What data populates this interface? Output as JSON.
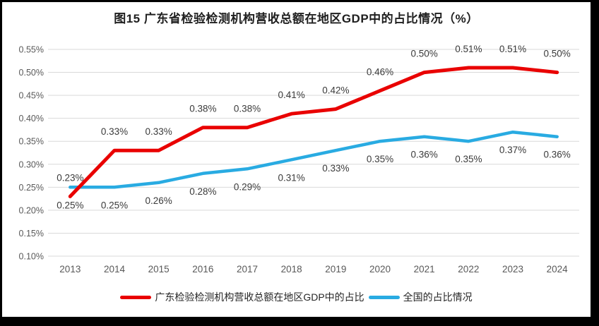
{
  "title": "图15  广东省检验检测机构营收总额在地区GDP中的占比情况（%）",
  "legend": [
    {
      "label": "广东检验检测机构营收总额在地区GDP中的占比",
      "color": "#e90000"
    },
    {
      "label": "全国的占比情况",
      "color": "#29abe2"
    }
  ],
  "colors": {
    "grid": "#d9d9d9",
    "tick_text": "#595959",
    "data_label_text": "#3a3a3a",
    "title_text": "#1f1f1f",
    "frame_border": "#000000",
    "background": "#ffffff"
  },
  "chart_data": {
    "type": "line",
    "title": "图15  广东省检验检测机构营收总额在地区GDP中的占比情况（%）",
    "categories": [
      "2013",
      "2014",
      "2015",
      "2016",
      "2017",
      "2018",
      "2019",
      "2020",
      "2021",
      "2022",
      "2023",
      "2024"
    ],
    "series": [
      {
        "name": "广东检验检测机构营收总额在地区GDP中的占比",
        "color": "#e90000",
        "stroke_width": 5,
        "label_position": "above",
        "values": [
          0.23,
          0.33,
          0.33,
          0.38,
          0.38,
          0.41,
          0.42,
          0.46,
          0.5,
          0.51,
          0.51,
          0.5
        ],
        "labels": [
          "0.23%",
          "0.33%",
          "0.33%",
          "0.38%",
          "0.38%",
          "0.41%",
          "0.42%",
          "0.46%",
          "0.50%",
          "0.51%",
          "0.51%",
          "0.50%"
        ]
      },
      {
        "name": "全国的占比情况",
        "color": "#29abe2",
        "stroke_width": 4.5,
        "label_position": "below",
        "values": [
          0.25,
          0.25,
          0.26,
          0.28,
          0.29,
          0.31,
          0.33,
          0.35,
          0.36,
          0.35,
          0.37,
          0.36
        ],
        "labels": [
          "0.25%",
          "0.25%",
          "0.26%",
          "0.28%",
          "0.29%",
          "0.31%",
          "0.33%",
          "0.35%",
          "0.36%",
          "0.35%",
          "0.37%",
          "0.36%"
        ]
      }
    ],
    "xlabel": "",
    "ylabel": "",
    "ylim": [
      0.1,
      0.55
    ],
    "y_ticks": [
      {
        "value": 0.1,
        "label": "0.10%"
      },
      {
        "value": 0.15,
        "label": "0.15%"
      },
      {
        "value": 0.2,
        "label": "0.20%"
      },
      {
        "value": 0.25,
        "label": "0.25%"
      },
      {
        "value": 0.3,
        "label": "0.30%"
      },
      {
        "value": 0.35,
        "label": "0.35%"
      },
      {
        "value": 0.4,
        "label": "0.40%"
      },
      {
        "value": 0.45,
        "label": "0.45%"
      },
      {
        "value": 0.5,
        "label": "0.50%"
      },
      {
        "value": 0.55,
        "label": "0.55%"
      }
    ],
    "grid": true,
    "legend_position": "bottom"
  }
}
